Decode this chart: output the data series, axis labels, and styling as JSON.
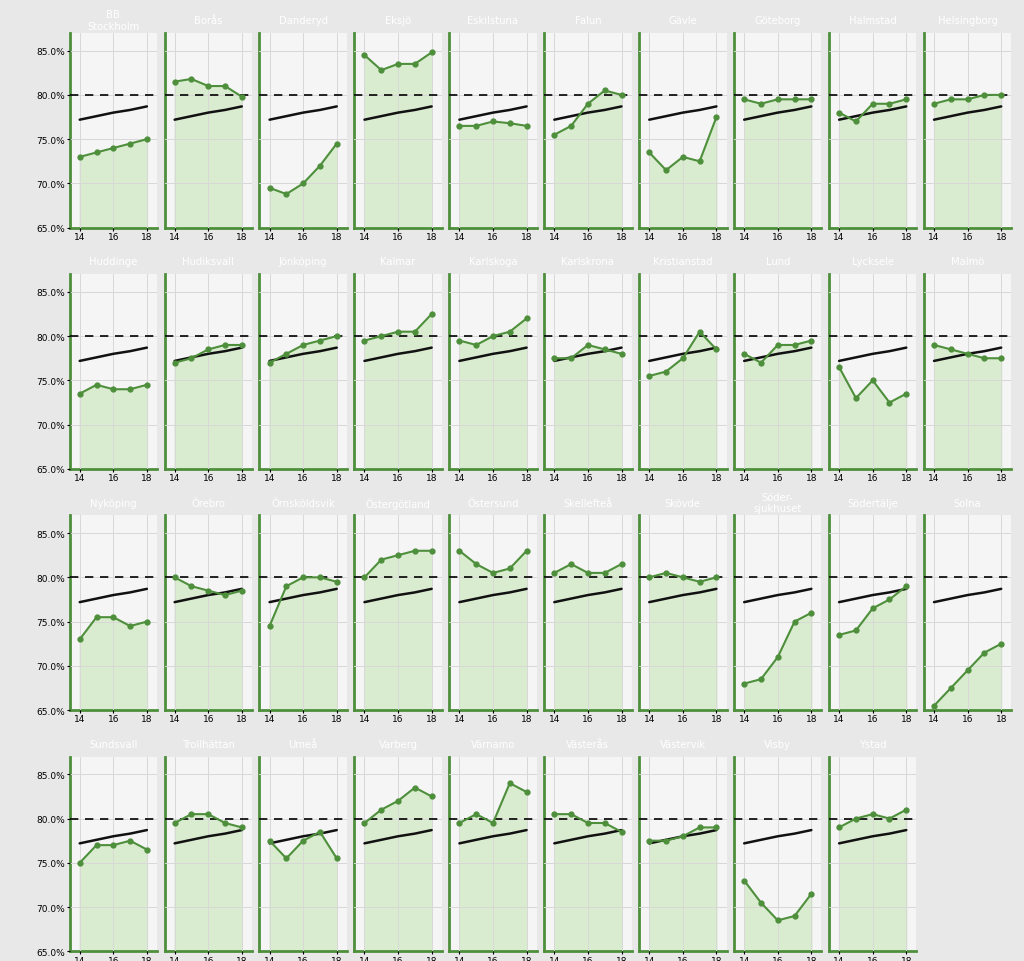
{
  "clinics": [
    {
      "name": "BB\nStockholm",
      "green": [
        73.0,
        73.5,
        74.0,
        74.5,
        75.0
      ]
    },
    {
      "name": "Borås",
      "green": [
        81.5,
        81.8,
        81.0,
        81.0,
        79.8
      ]
    },
    {
      "name": "Danderyd",
      "green": [
        69.5,
        68.8,
        70.0,
        72.0,
        74.5
      ]
    },
    {
      "name": "Eksjö",
      "green": [
        84.5,
        82.8,
        83.5,
        83.5,
        84.8
      ]
    },
    {
      "name": "Eskilstuna",
      "green": [
        76.5,
        76.5,
        77.0,
        76.8,
        76.5
      ]
    },
    {
      "name": "Falun",
      "green": [
        75.5,
        76.5,
        79.0,
        80.5,
        80.0
      ]
    },
    {
      "name": "Gävle",
      "green": [
        73.5,
        71.5,
        73.0,
        72.5,
        77.5
      ]
    },
    {
      "name": "Göteborg",
      "green": [
        79.5,
        79.0,
        79.5,
        79.5,
        79.5
      ]
    },
    {
      "name": "Halmstad",
      "green": [
        78.0,
        77.0,
        79.0,
        79.0,
        79.5
      ]
    },
    {
      "name": "Helsingborg",
      "green": [
        79.0,
        79.5,
        79.5,
        80.0,
        80.0
      ]
    },
    {
      "name": "Huddinge",
      "green": [
        73.5,
        74.5,
        74.0,
        74.0,
        74.5
      ]
    },
    {
      "name": "Hudiksvall",
      "green": [
        77.0,
        77.5,
        78.5,
        79.0,
        79.0
      ]
    },
    {
      "name": "Jönköping",
      "green": [
        77.0,
        78.0,
        79.0,
        79.5,
        80.0
      ]
    },
    {
      "name": "Kalmar",
      "green": [
        79.5,
        80.0,
        80.5,
        80.5,
        82.5
      ]
    },
    {
      "name": "Karlskoga",
      "green": [
        79.5,
        79.0,
        80.0,
        80.5,
        82.0
      ]
    },
    {
      "name": "Karlskrona",
      "green": [
        77.5,
        77.5,
        79.0,
        78.5,
        78.0
      ]
    },
    {
      "name": "Kristianstad",
      "green": [
        75.5,
        76.0,
        77.5,
        80.5,
        78.5
      ]
    },
    {
      "name": "Lund",
      "green": [
        78.0,
        77.0,
        79.0,
        79.0,
        79.5
      ]
    },
    {
      "name": "Lycksele",
      "green": [
        76.5,
        73.0,
        75.0,
        72.5,
        73.5
      ]
    },
    {
      "name": "Malmö",
      "green": [
        79.0,
        78.5,
        78.0,
        77.5,
        77.5
      ]
    },
    {
      "name": "Nyköping",
      "green": [
        73.0,
        75.5,
        75.5,
        74.5,
        75.0
      ]
    },
    {
      "name": "Örebro",
      "green": [
        80.0,
        79.0,
        78.5,
        78.0,
        78.5
      ]
    },
    {
      "name": "Örnsköldsvik",
      "green": [
        74.5,
        79.0,
        80.0,
        80.0,
        79.5
      ]
    },
    {
      "name": "Östergötland",
      "green": [
        80.0,
        82.0,
        82.5,
        83.0,
        83.0
      ]
    },
    {
      "name": "Östersund",
      "green": [
        83.0,
        81.5,
        80.5,
        81.0,
        83.0
      ]
    },
    {
      "name": "Skellefteå",
      "green": [
        80.5,
        81.5,
        80.5,
        80.5,
        81.5
      ]
    },
    {
      "name": "Skövde",
      "green": [
        80.0,
        80.5,
        80.0,
        79.5,
        80.0
      ]
    },
    {
      "name": "Söder-\nsjukhuset",
      "green": [
        68.0,
        68.5,
        71.0,
        75.0,
        76.0
      ]
    },
    {
      "name": "Södertälje",
      "green": [
        73.5,
        74.0,
        76.5,
        77.5,
        79.0
      ]
    },
    {
      "name": "Solna",
      "green": [
        65.5,
        67.5,
        69.5,
        71.5,
        72.5
      ]
    },
    {
      "name": "Sundsvall",
      "green": [
        75.0,
        77.0,
        77.0,
        77.5,
        76.5
      ]
    },
    {
      "name": "Trollhättan",
      "green": [
        79.5,
        80.5,
        80.5,
        79.5,
        79.0
      ]
    },
    {
      "name": "Umeå",
      "green": [
        77.5,
        75.5,
        77.5,
        78.5,
        75.5
      ]
    },
    {
      "name": "Varberg",
      "green": [
        79.5,
        81.0,
        82.0,
        83.5,
        82.5
      ]
    },
    {
      "name": "Värnamo",
      "green": [
        79.5,
        80.5,
        79.5,
        84.0,
        83.0
      ]
    },
    {
      "name": "Västerås",
      "green": [
        80.5,
        80.5,
        79.5,
        79.5,
        78.5
      ]
    },
    {
      "name": "Västervik",
      "green": [
        77.5,
        77.5,
        78.0,
        79.0,
        79.0
      ]
    },
    {
      "name": "Visby",
      "green": [
        73.0,
        70.5,
        68.5,
        69.0,
        71.5
      ]
    },
    {
      "name": "Ystad",
      "green": [
        79.0,
        80.0,
        80.5,
        80.0,
        81.0
      ]
    }
  ],
  "national_avg": [
    77.2,
    77.6,
    78.0,
    78.3,
    78.7
  ],
  "years": [
    14,
    15,
    16,
    17,
    18
  ],
  "ylim": [
    65.0,
    87.0
  ],
  "yticks": [
    65.0,
    70.0,
    75.0,
    80.0,
    85.0
  ],
  "dashed_line": 80.0,
  "green_color": "#4e8f3c",
  "green_fill": "#daecd0",
  "black_line_color": "#111111",
  "outer_bg": "#e8e8e8",
  "plot_bg": "#f5f5f5",
  "header_bg": "#2b2b2b",
  "header_text": "#ffffff",
  "grid_color": "#d8d8d8",
  "counts": [
    10,
    10,
    10,
    9
  ]
}
